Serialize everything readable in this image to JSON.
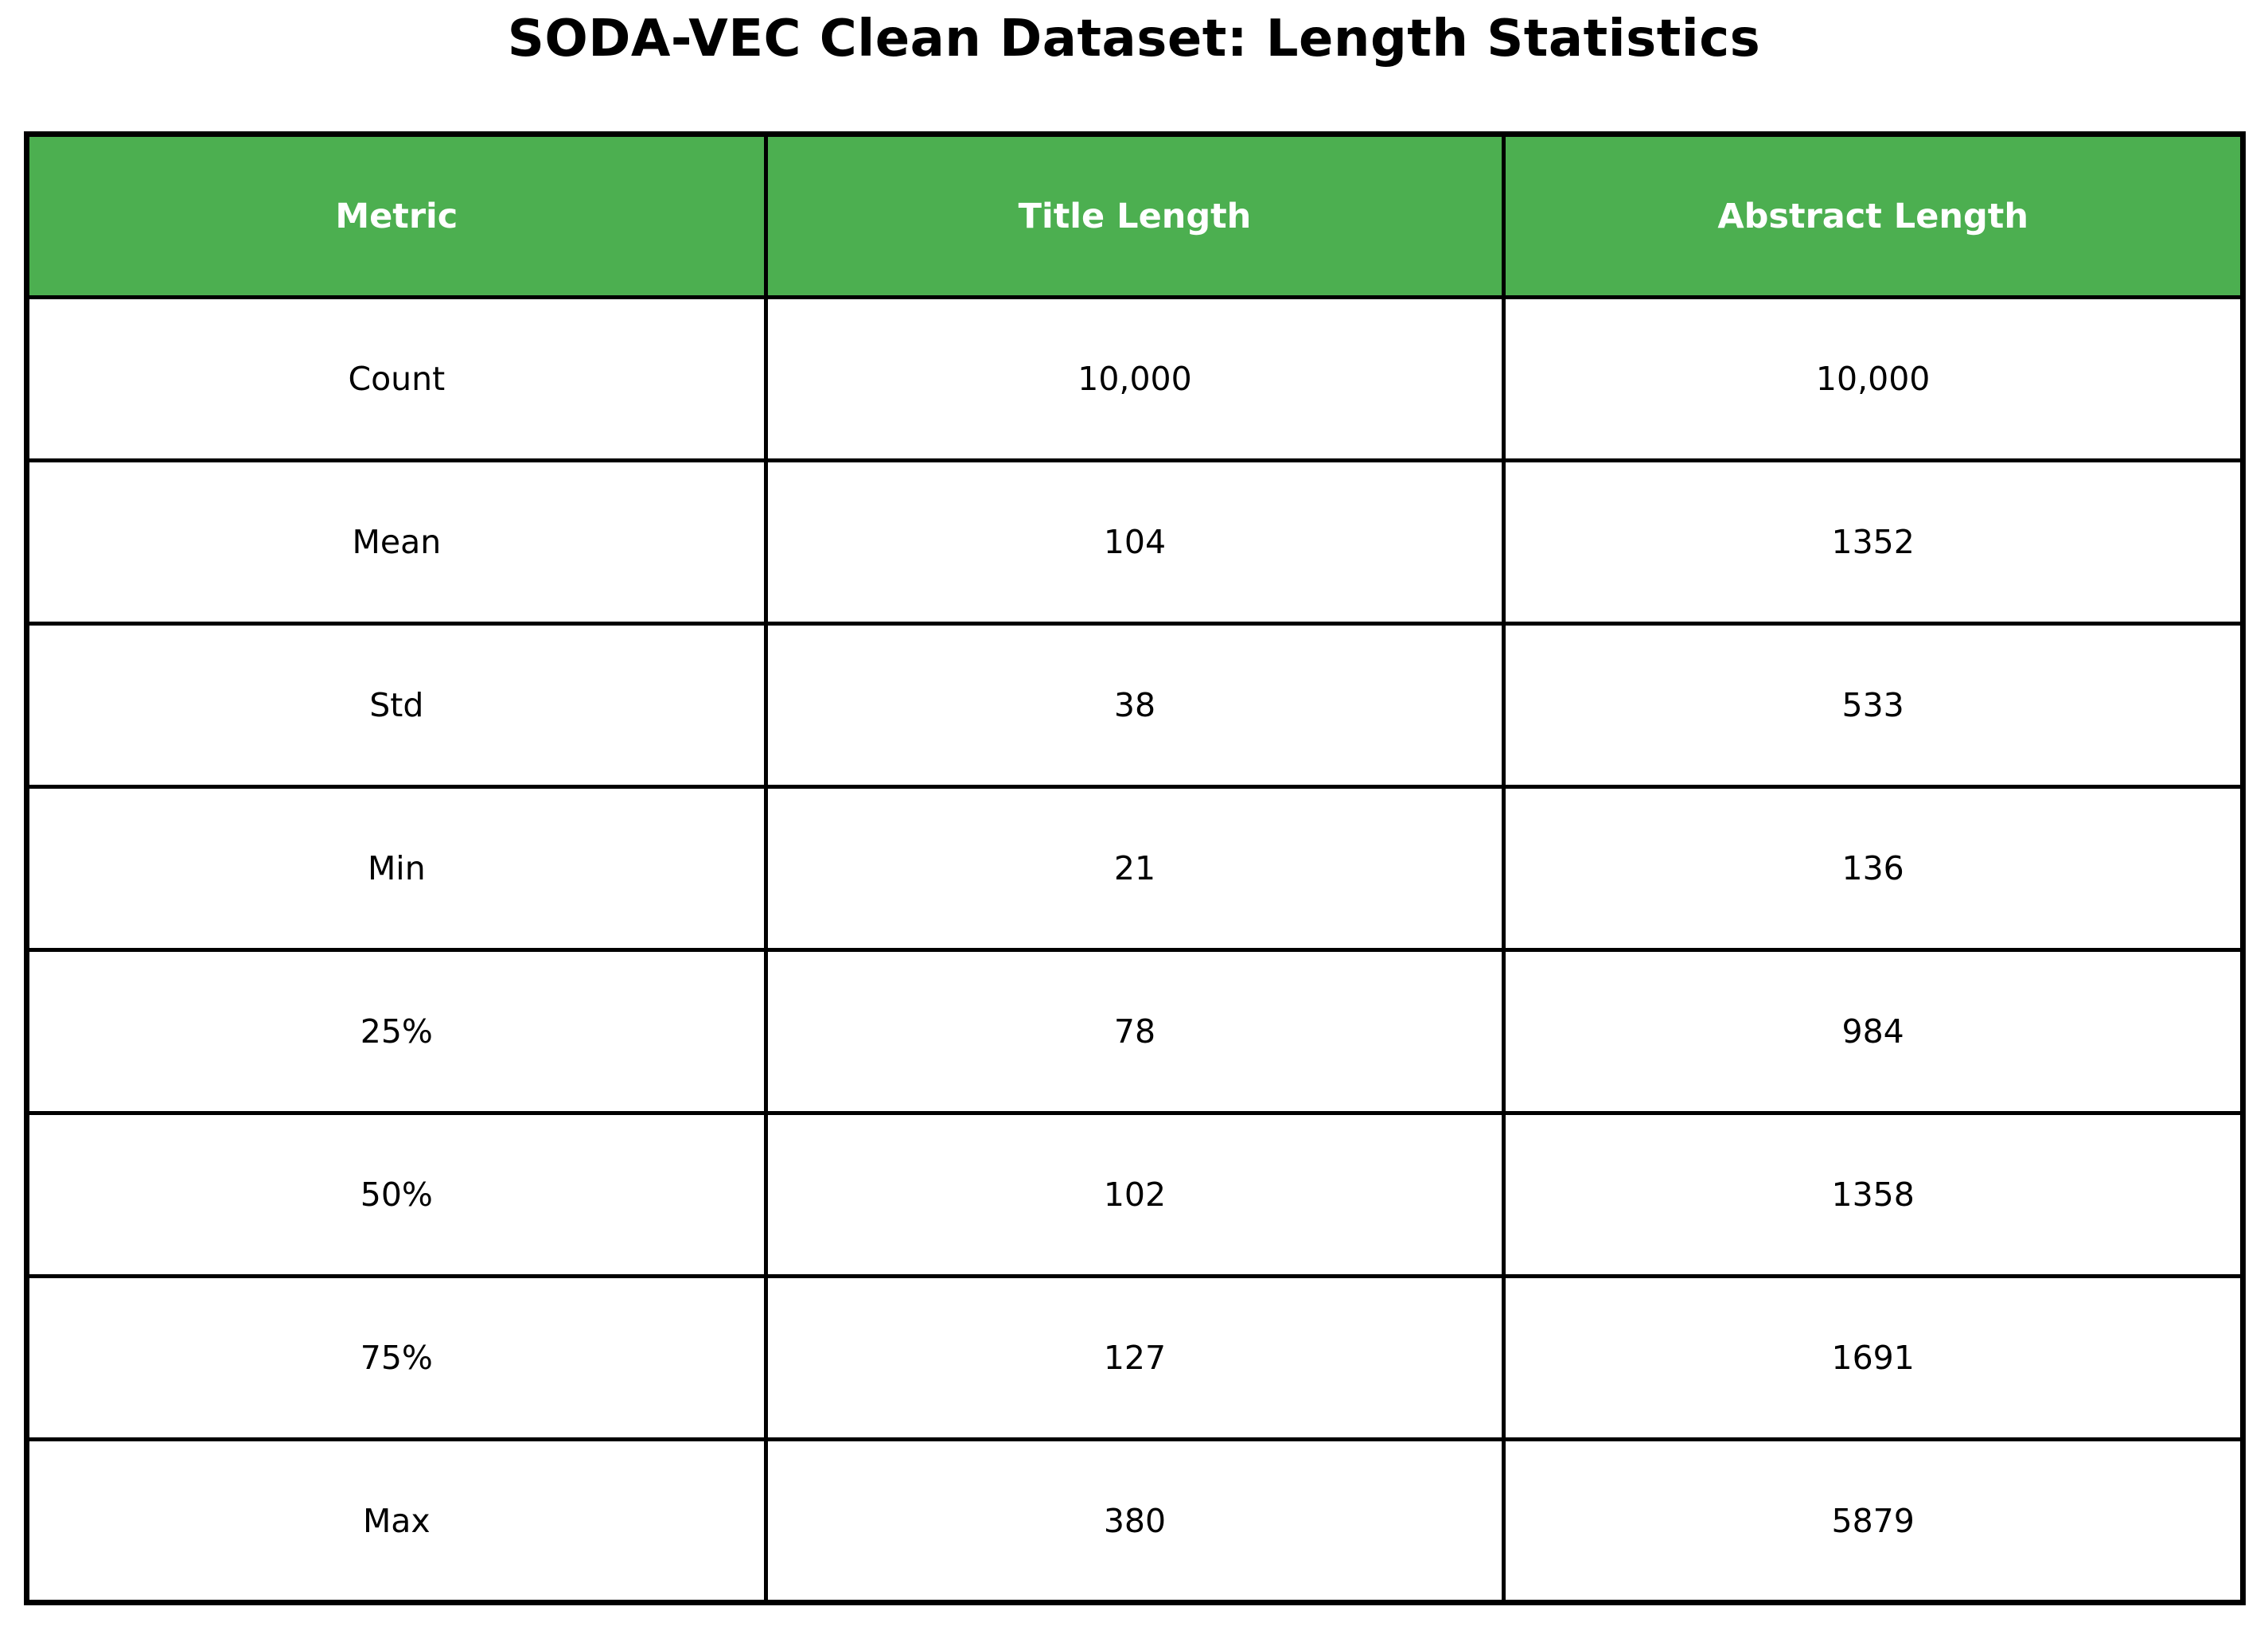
{
  "title": "SODA-VEC Clean Dataset: Length Statistics",
  "colors": {
    "header_bg": "#4CAF50",
    "header_text": "#FFFFFF",
    "cell_bg": "#FFFFFF",
    "cell_text": "#000000",
    "border": "#000000",
    "page_bg": "#FFFFFF"
  },
  "chart_data": {
    "type": "table",
    "title": "SODA-VEC Clean Dataset: Length Statistics",
    "columns": [
      "Metric",
      "Title Length",
      "Abstract Length"
    ],
    "rows": [
      [
        "Count",
        "10,000",
        "10,000"
      ],
      [
        "Mean",
        "104",
        "1352"
      ],
      [
        "Std",
        "38",
        "533"
      ],
      [
        "Min",
        "21",
        "136"
      ],
      [
        "25%",
        "78",
        "984"
      ],
      [
        "50%",
        "102",
        "1358"
      ],
      [
        "75%",
        "127",
        "1691"
      ],
      [
        "Max",
        "380",
        "5879"
      ]
    ]
  }
}
